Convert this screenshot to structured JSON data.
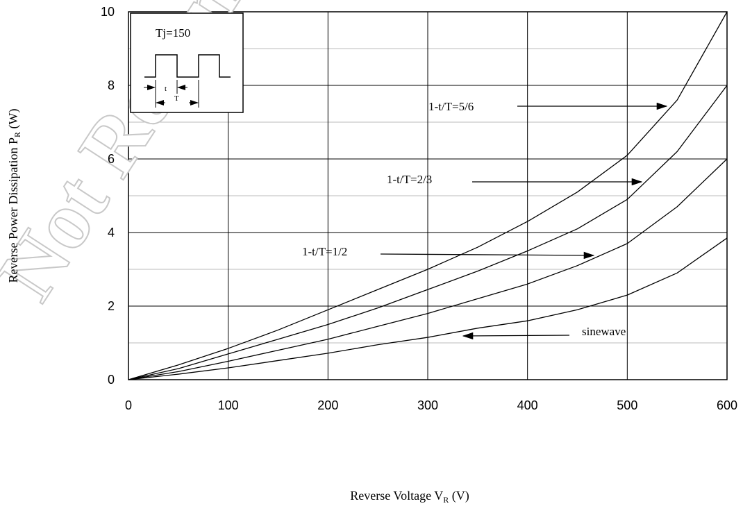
{
  "chart_data": {
    "type": "line",
    "x_label": [
      "Reverse Voltage V",
      "R",
      " (V)"
    ],
    "y_label": [
      "Reverse Power Dissipation P",
      "R",
      " (W)"
    ],
    "watermark": "Not Recommended",
    "inset": {
      "text": "Tj=150",
      "t": "t",
      "T": "T"
    },
    "x": [
      0,
      50,
      100,
      150,
      200,
      250,
      300,
      350,
      400,
      450,
      500,
      550,
      600
    ],
    "series": [
      {
        "name": "1-t/T=5/6",
        "color": "#000000",
        "values": [
          0,
          0.4,
          0.85,
          1.35,
          1.9,
          2.45,
          3.0,
          3.6,
          4.3,
          5.1,
          6.1,
          7.6,
          10
        ]
      },
      {
        "name": "1-t/T=2/3",
        "color": "#000000",
        "values": [
          0,
          0.3,
          0.7,
          1.1,
          1.5,
          1.95,
          2.45,
          2.95,
          3.5,
          4.1,
          4.9,
          6.2,
          8
        ]
      },
      {
        "name": "1-t/T=1/2",
        "color": "#000000",
        "values": [
          0,
          0.22,
          0.5,
          0.8,
          1.1,
          1.45,
          1.8,
          2.2,
          2.6,
          3.1,
          3.7,
          4.7,
          6
        ]
      },
      {
        "name": "sinewave",
        "color": "#000000",
        "values": [
          0,
          0.15,
          0.32,
          0.52,
          0.72,
          0.95,
          1.15,
          1.4,
          1.6,
          1.9,
          2.3,
          2.9,
          3.85
        ]
      }
    ],
    "xlim": [
      0,
      600
    ],
    "xticks": [
      0,
      100,
      200,
      300,
      400,
      500,
      600
    ],
    "ylim": [
      0,
      10
    ],
    "yticks": [
      0,
      2,
      4,
      6,
      8,
      10
    ],
    "minor_yticks": [
      1,
      3,
      5,
      7,
      9
    ],
    "grid": true
  }
}
